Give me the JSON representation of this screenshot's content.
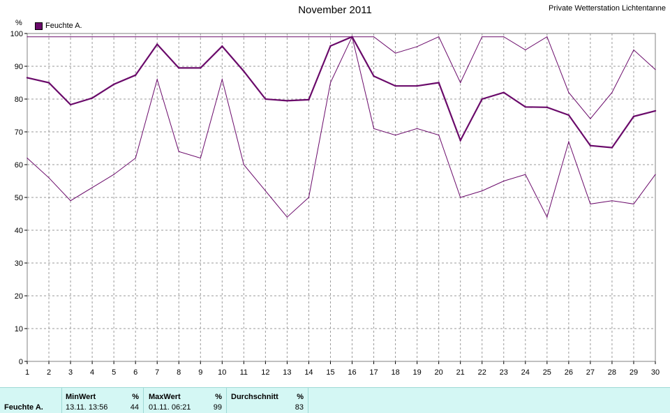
{
  "header": {
    "title": "November 2011",
    "station": "Private Wetterstation Lichtentanne"
  },
  "legend": {
    "label": "Feuchte A.",
    "color": "#6a0a6a"
  },
  "chart_data": {
    "type": "line",
    "title": "November 2011",
    "ylabel": "%",
    "ylim": [
      0,
      100
    ],
    "yticks": [
      0,
      10,
      20,
      30,
      40,
      50,
      60,
      70,
      80,
      90,
      100
    ],
    "x": [
      1,
      2,
      3,
      4,
      5,
      6,
      7,
      8,
      9,
      10,
      11,
      12,
      13,
      14,
      15,
      16,
      17,
      18,
      19,
      20,
      21,
      22,
      23,
      24,
      25,
      26,
      27,
      28,
      29,
      30
    ],
    "grid": true,
    "color": "#6a0a6a",
    "series": [
      {
        "role": "max",
        "values": [
          99,
          99,
          99,
          99,
          99,
          99,
          99,
          99,
          99,
          99,
          99,
          99,
          99,
          99,
          99,
          99,
          99,
          94,
          96,
          99,
          85,
          99,
          99,
          95,
          99,
          82,
          74,
          82,
          95,
          89
        ]
      },
      {
        "role": "mean",
        "values": [
          86.5,
          85,
          78.3,
          80.3,
          84.5,
          87.3,
          96.7,
          89.5,
          89.5,
          96.1,
          88.5,
          80,
          79.5,
          79.8,
          96.2,
          99,
          87,
          84,
          84,
          85,
          67.4,
          80,
          82,
          77.6,
          77.5,
          75.1,
          65.8,
          65.2,
          74.7,
          76.4
        ]
      },
      {
        "role": "min",
        "values": [
          62,
          56,
          49,
          53,
          57,
          62,
          86,
          64,
          62,
          86,
          60,
          52,
          44,
          50,
          85,
          99,
          71,
          69,
          71,
          69,
          50,
          52,
          55,
          57,
          44,
          67,
          48,
          49,
          48,
          57
        ]
      }
    ]
  },
  "stats": {
    "row_label": "Feuchte A.",
    "min": {
      "header": "MinWert",
      "unit": "%",
      "datetime": "13.11.  13:56",
      "value": "44"
    },
    "max": {
      "header": "MaxWert",
      "unit": "%",
      "datetime": "01.11.  06:21",
      "value": "99"
    },
    "avg": {
      "header": "Durchschnitt",
      "unit": "%",
      "value": "83"
    }
  }
}
